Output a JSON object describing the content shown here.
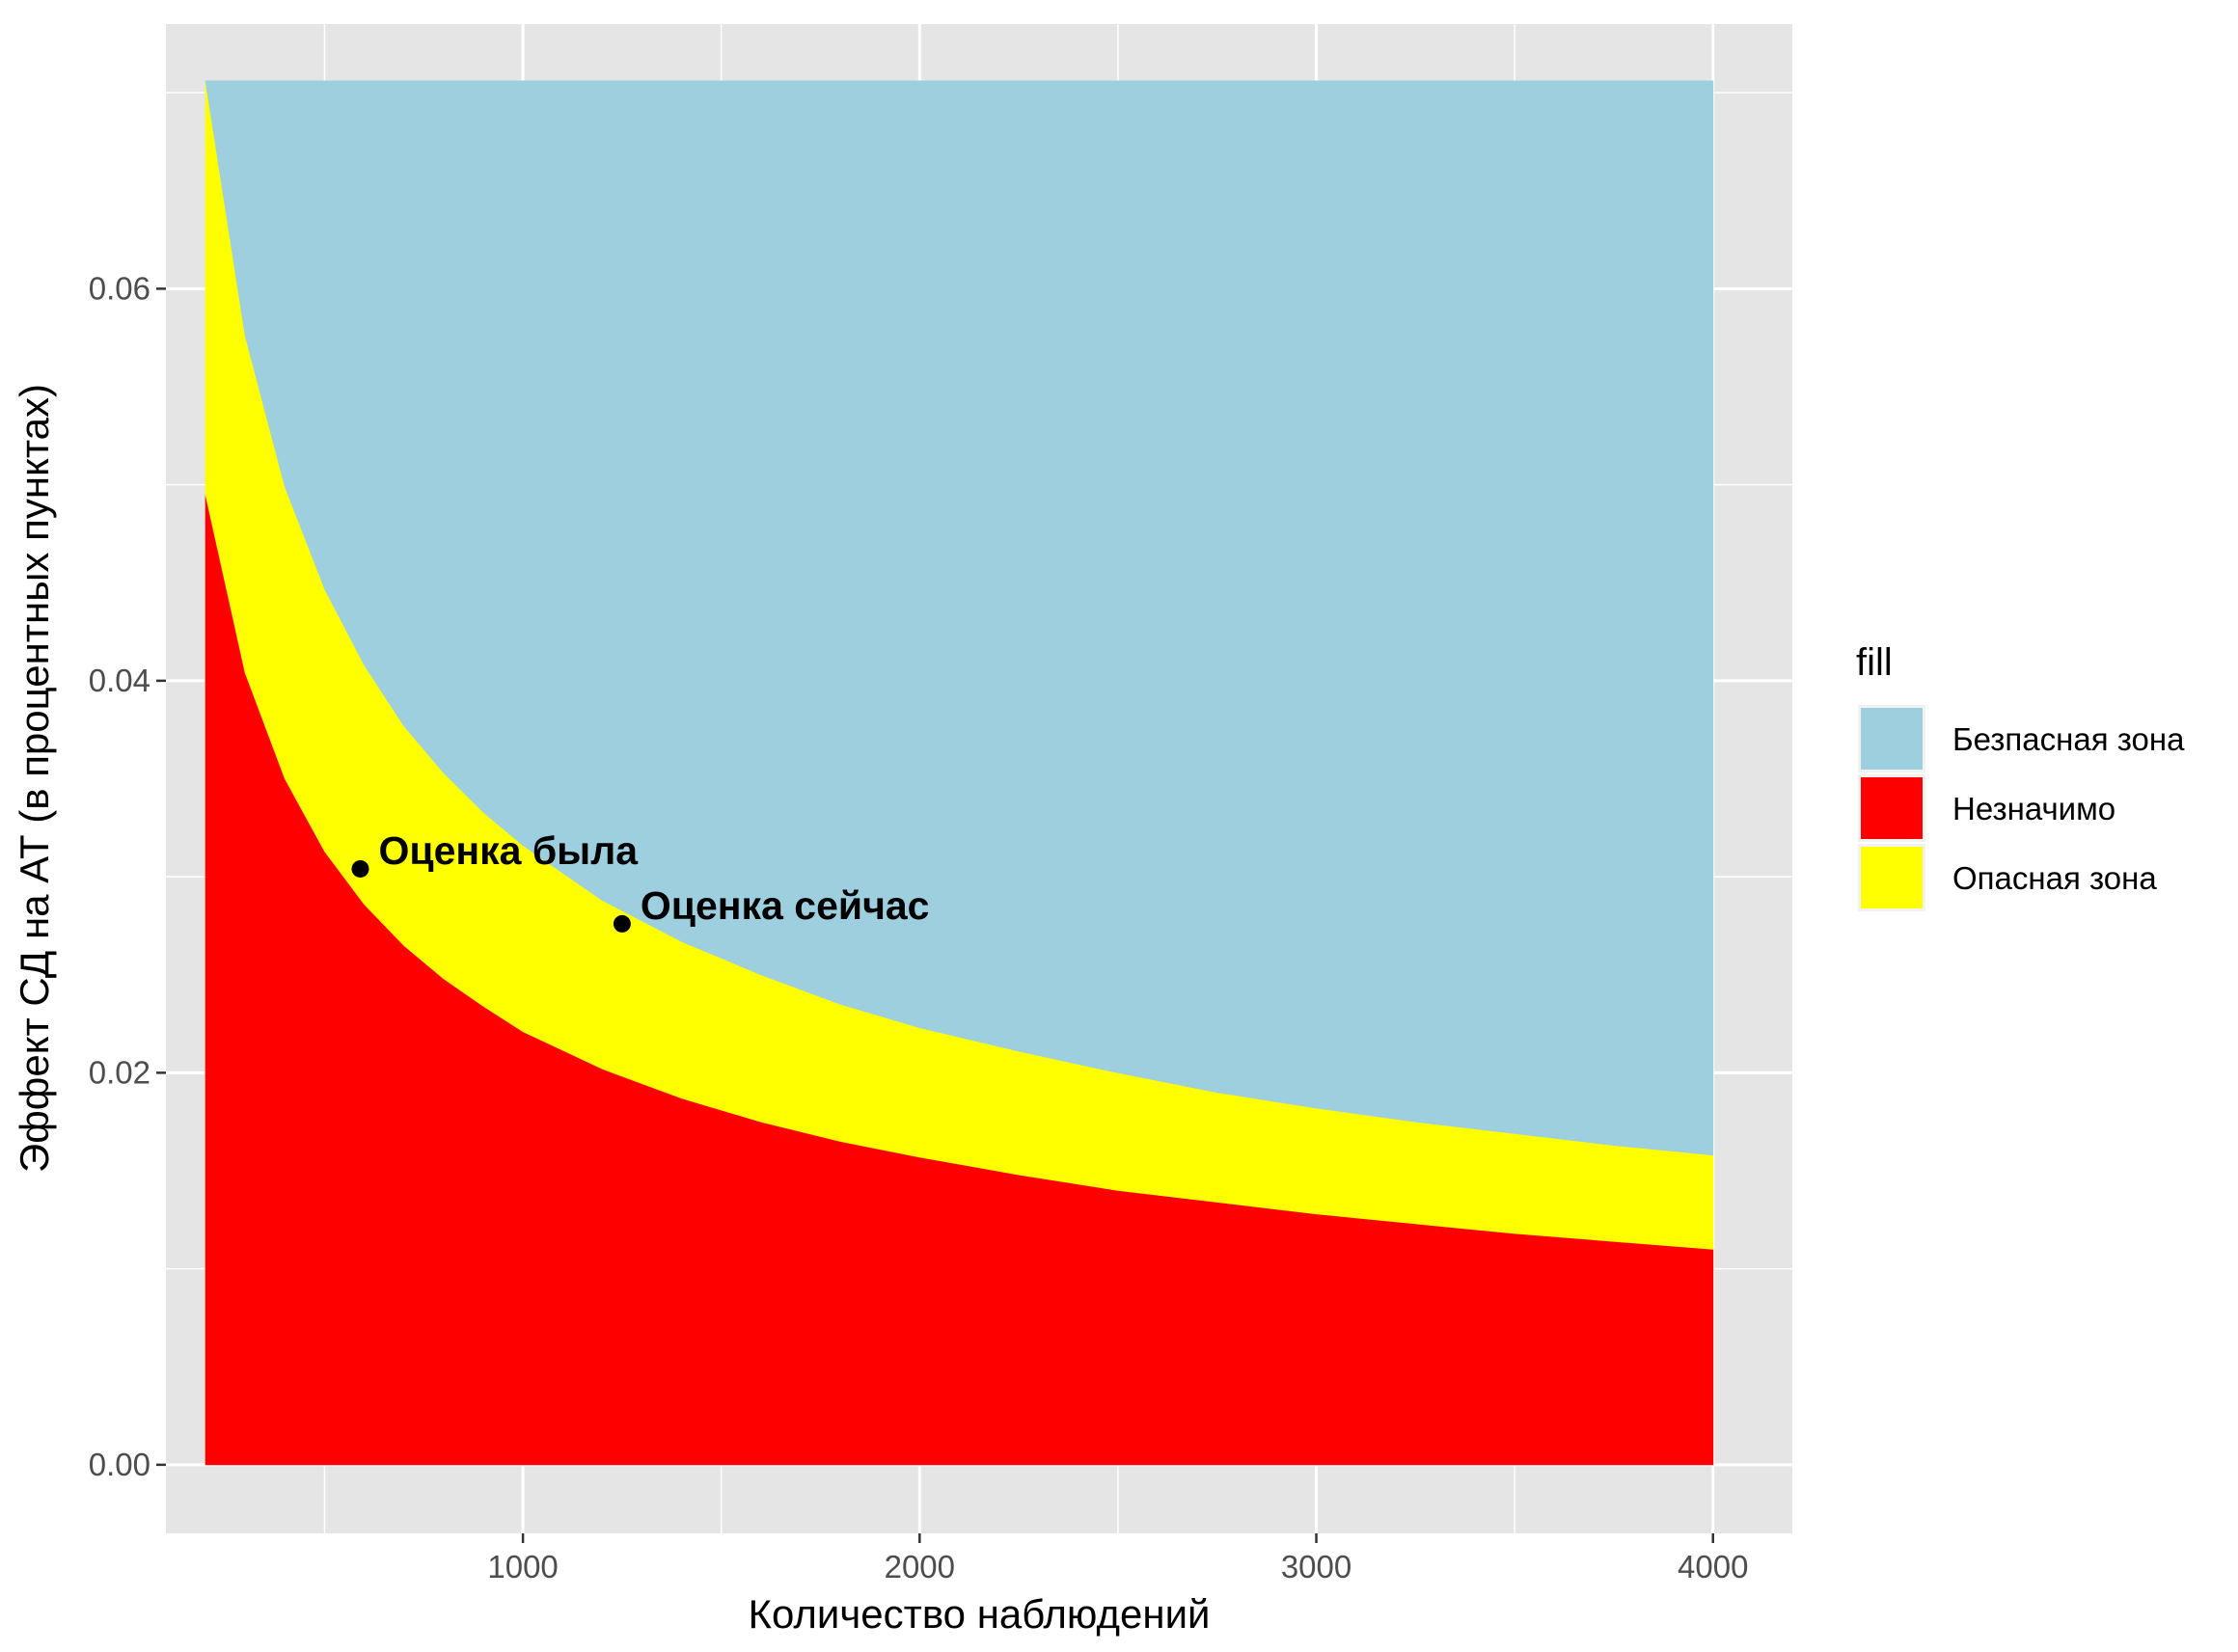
{
  "chart_data": {
    "type": "area",
    "title": "",
    "xlabel": "Количество наблюдений",
    "ylabel": "Эффект СД на АТ (в процентных пунктах)",
    "xlim": [
      100,
      4200
    ],
    "ylim": [
      -0.0035,
      0.0735
    ],
    "grid": true,
    "x_major_ticks": [
      1000,
      2000,
      3000,
      4000
    ],
    "x_tick_labels": [
      "1000",
      "2000",
      "3000",
      "4000"
    ],
    "x_minor_ticks": [
      500,
      1500,
      2500,
      3500
    ],
    "y_major_ticks": [
      0.0,
      0.02,
      0.04,
      0.06
    ],
    "y_tick_labels": [
      "0.00",
      "0.02",
      "0.04",
      "0.06"
    ],
    "y_minor_ticks": [
      0.01,
      0.03,
      0.05,
      0.07
    ],
    "x": [
      200,
      300,
      400,
      500,
      600,
      700,
      800,
      900,
      1000,
      1200,
      1400,
      1600,
      1800,
      2000,
      2250,
      2500,
      2750,
      3000,
      3250,
      3500,
      3750,
      4000
    ],
    "series": [
      {
        "name": "Незначимо",
        "color": "#ff0000",
        "lower": [
          0,
          0,
          0,
          0,
          0,
          0,
          0,
          0,
          0,
          0,
          0,
          0,
          0,
          0,
          0,
          0,
          0,
          0,
          0,
          0,
          0,
          0
        ],
        "upper": [
          0.0495,
          0.0404,
          0.035,
          0.0313,
          0.0286,
          0.0265,
          0.0248,
          0.0234,
          0.0221,
          0.0202,
          0.0187,
          0.0175,
          0.0165,
          0.0157,
          0.0148,
          0.014,
          0.0134,
          0.0128,
          0.0123,
          0.0118,
          0.0114,
          0.011
        ]
      },
      {
        "name": "Опасная зона",
        "color": "#ffff00",
        "lower": [
          0.0495,
          0.0404,
          0.035,
          0.0313,
          0.0286,
          0.0265,
          0.0248,
          0.0234,
          0.0221,
          0.0202,
          0.0187,
          0.0175,
          0.0165,
          0.0157,
          0.0148,
          0.014,
          0.0134,
          0.0128,
          0.0123,
          0.0118,
          0.0114,
          0.011
        ],
        "upper": [
          0.0706,
          0.0576,
          0.0499,
          0.0447,
          0.0408,
          0.0377,
          0.0353,
          0.0333,
          0.0316,
          0.0288,
          0.0267,
          0.025,
          0.0235,
          0.0223,
          0.0211,
          0.02,
          0.019,
          0.0182,
          0.0175,
          0.0169,
          0.0163,
          0.0158
        ]
      },
      {
        "name": "Безпасная зона",
        "color": "#9ecfdf",
        "lower": [
          0.0706,
          0.0576,
          0.0499,
          0.0447,
          0.0408,
          0.0377,
          0.0353,
          0.0333,
          0.0316,
          0.0288,
          0.0267,
          0.025,
          0.0235,
          0.0223,
          0.0211,
          0.02,
          0.019,
          0.0182,
          0.0175,
          0.0169,
          0.0163,
          0.0158
        ],
        "upper": [
          0.0706,
          0.0706,
          0.0706,
          0.0706,
          0.0706,
          0.0706,
          0.0706,
          0.0706,
          0.0706,
          0.0706,
          0.0706,
          0.0706,
          0.0706,
          0.0706,
          0.0706,
          0.0706,
          0.0706,
          0.0706,
          0.0706,
          0.0706,
          0.0706,
          0.0706
        ]
      }
    ],
    "points": [
      {
        "label": "Оценка была",
        "x": 590,
        "y": 0.0304
      },
      {
        "label": "Оценка сейчас",
        "x": 1250,
        "y": 0.0276
      }
    ],
    "legend": {
      "title": "fill",
      "position": "right",
      "items": [
        {
          "label": "Безпасная зона",
          "color": "#9ecfdf"
        },
        {
          "label": "Незначимо",
          "color": "#ff0000"
        },
        {
          "label": "Опасная зона",
          "color": "#ffff00"
        }
      ]
    },
    "colors": {
      "panel_background": "#e5e5e5",
      "grid": "#ffffff",
      "axis_text": "#4d4d4d",
      "point": "#000000"
    }
  }
}
